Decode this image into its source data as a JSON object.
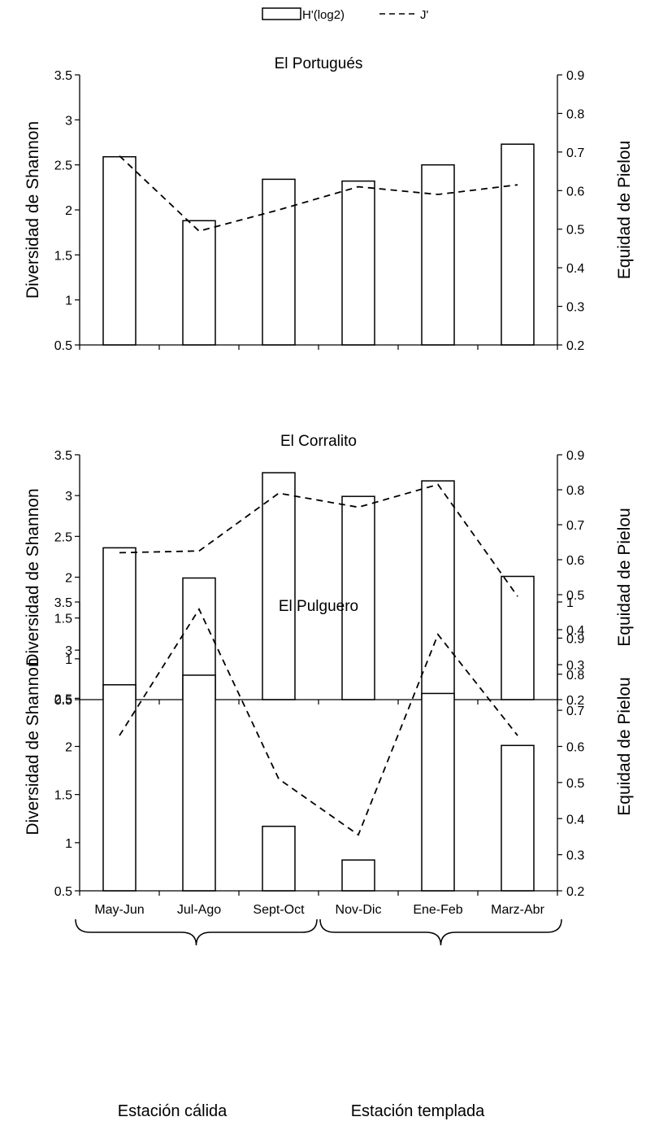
{
  "legend": {
    "bar_label": "H'(log2)",
    "line_label": "J'"
  },
  "categories": [
    "May-Jun",
    "Jul-Ago",
    "Sept-Oct",
    "Nov-Dic",
    "Ene-Feb",
    "Marz-Abr"
  ],
  "seasons": [
    "Estación cálida",
    "Estación templada"
  ],
  "chart_data": [
    {
      "type": "bar",
      "title": "El Portugués",
      "ylabel": "Diversidad de Shannon",
      "y2label": "Equidad de Pielou",
      "categories": [
        "May-Jun",
        "Jul-Ago",
        "Sept-Oct",
        "Nov-Dic",
        "Ene-Feb",
        "Marz-Abr"
      ],
      "ylim": [
        0.5,
        3.5
      ],
      "y2lim": [
        0.2,
        0.9
      ],
      "yticks": [
        "0.5",
        "1",
        "1.5",
        "2",
        "2.5",
        "3",
        "3.5"
      ],
      "y2ticks": [
        "0.2",
        "0.3",
        "0.4",
        "0.5",
        "0.6",
        "0.7",
        "0.8",
        "0.9"
      ],
      "show_xticklabels": false,
      "series": [
        {
          "name": "H'(log2)",
          "type": "bar",
          "axis": "left",
          "values": [
            2.59,
            1.88,
            2.34,
            2.32,
            2.5,
            2.73
          ]
        },
        {
          "name": "J'",
          "type": "line",
          "axis": "right",
          "values": [
            0.69,
            0.495,
            0.55,
            0.61,
            0.59,
            0.615
          ]
        }
      ]
    },
    {
      "type": "bar",
      "title": "El Corralito",
      "ylabel": "Diversidad de Shannon",
      "y2label": "Equidad de Pielou",
      "categories": [
        "May-Jun",
        "Jul-Ago",
        "Sept-Oct",
        "Nov-Dic",
        "Ene-Feb",
        "Marz-Abr"
      ],
      "ylim": [
        0.5,
        3.5
      ],
      "y2lim": [
        0.2,
        0.9
      ],
      "yticks": [
        "0.5",
        "1",
        "1.5",
        "2",
        "2.5",
        "3",
        "3.5"
      ],
      "y2ticks": [
        "0.2",
        "0.3",
        "0.4",
        "0.5",
        "0.6",
        "0.7",
        "0.8",
        "0.9"
      ],
      "show_xticklabels": false,
      "series": [
        {
          "name": "H'(log2)",
          "type": "bar",
          "axis": "left",
          "values": [
            2.36,
            1.99,
            3.28,
            2.99,
            3.18,
            2.01
          ]
        },
        {
          "name": "J'",
          "type": "line",
          "axis": "right",
          "values": [
            0.62,
            0.625,
            0.79,
            0.75,
            0.815,
            0.495
          ]
        }
      ]
    },
    {
      "type": "bar",
      "title": "El Pulguero",
      "ylabel": "Diversidad de Shannon",
      "y2label": "Equidad de Pielou",
      "categories": [
        "May-Jun",
        "Jul-Ago",
        "Sept-Oct",
        "Nov-Dic",
        "Ene-Feb",
        "Marz-Abr"
      ],
      "ylim": [
        0.5,
        3.5
      ],
      "y2lim": [
        0.2,
        1.0
      ],
      "yticks": [
        "0.5",
        "1",
        "1.5",
        "2",
        "2.5",
        "3",
        "3.5"
      ],
      "y2ticks": [
        "0.2",
        "0.3",
        "0.4",
        "0.5",
        "0.6",
        "0.7",
        "0.8",
        "0.9",
        "1"
      ],
      "show_xticklabels": true,
      "series": [
        {
          "name": "H'(log2)",
          "type": "bar",
          "axis": "left",
          "values": [
            2.64,
            2.74,
            1.17,
            0.82,
            2.55,
            2.01
          ]
        },
        {
          "name": "J'",
          "type": "line",
          "axis": "right",
          "values": [
            0.63,
            0.98,
            0.51,
            0.355,
            0.91,
            0.63
          ]
        }
      ]
    }
  ]
}
